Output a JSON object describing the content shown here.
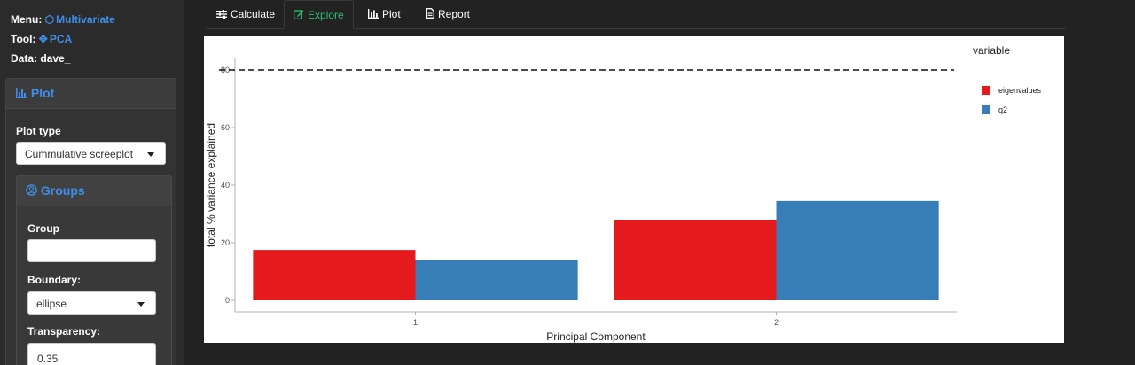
{
  "sidebar": {
    "menu_label": "Menu:",
    "menu_value": "Multivariate",
    "tool_label": "Tool:",
    "tool_value": "PCA",
    "data_label": "Data:",
    "data_value": "dave_",
    "plot_panel_title": "Plot",
    "plot_type_label": "Plot type",
    "plot_type_value": "Cummulative screeplot",
    "groups_panel_title": "Groups",
    "group_label": "Group",
    "group_value": "",
    "boundary_label": "Boundary:",
    "boundary_value": "ellipse",
    "transparency_label": "Transparency:",
    "transparency_value": "0.35"
  },
  "tabs": [
    {
      "label": "Calculate",
      "icon": "sliders-icon",
      "active": false
    },
    {
      "label": "Explore",
      "icon": "edit-icon",
      "active": true
    },
    {
      "label": "Plot",
      "icon": "bar-chart-icon",
      "active": false
    },
    {
      "label": "Report",
      "icon": "file-icon",
      "active": false
    }
  ],
  "colors": {
    "accent_blue": "#3e8ee8",
    "active_tab_green": "#2fbf71",
    "eigenvalues": "#e41a1c",
    "q2": "#377eb8"
  },
  "chart_data": {
    "type": "bar",
    "categories": [
      "1",
      "2"
    ],
    "series": [
      {
        "name": "eigenvalues",
        "values": [
          17.5,
          28
        ]
      },
      {
        "name": "q2",
        "values": [
          14,
          34.5
        ]
      }
    ],
    "reference_line": {
      "y": 80,
      "style": "dashed"
    },
    "xlabel": "Principal Component",
    "ylabel": "total % variance explained",
    "ylim": [
      -4,
      84
    ],
    "yticks": [
      0,
      20,
      40,
      60,
      80
    ],
    "legend_title": "variable",
    "legend_position": "right",
    "grid": false
  }
}
